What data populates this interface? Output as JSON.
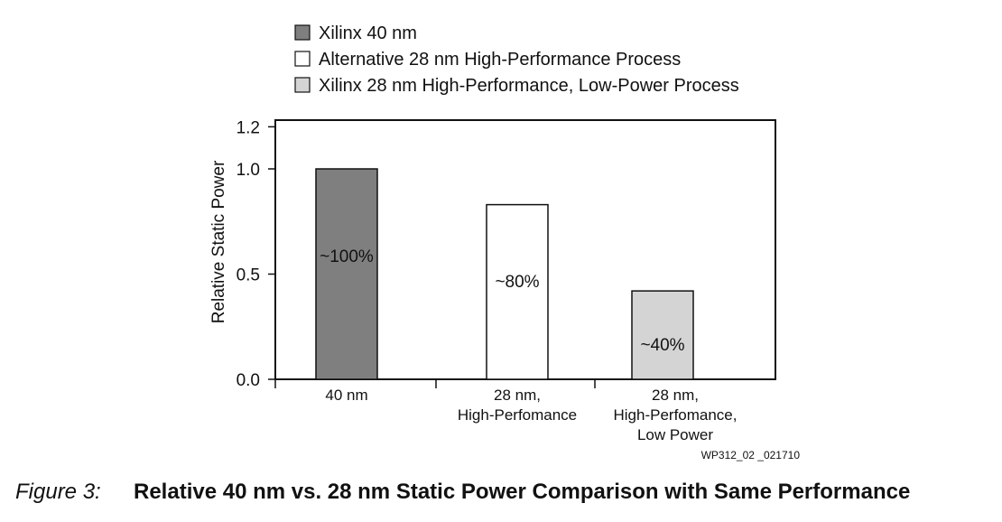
{
  "chart_data": {
    "type": "bar",
    "categories": [
      [
        "40 nm"
      ],
      [
        "28 nm,",
        "High-Perfomance"
      ],
      [
        "28 nm,",
        "High-Perfomance,",
        "Low Power"
      ]
    ],
    "values": [
      1.0,
      0.83,
      0.42
    ],
    "data_labels": [
      "~100%",
      "~80%",
      "~40%"
    ],
    "colors": [
      "#7f7f7f",
      "#ffffff",
      "#d4d4d4"
    ],
    "ylabel": "Relative Static Power",
    "ylim": [
      0,
      1.2
    ],
    "yticks": [
      0.0,
      0.5,
      1.0,
      1.2
    ],
    "ytick_labels": [
      "0.0",
      "0.5",
      "1.0",
      "1.2"
    ],
    "grid": false,
    "legend_position": "top",
    "legend": [
      {
        "label": "Xilinx 40 nm",
        "color": "#7f7f7f"
      },
      {
        "label": "Alternative 28 nm High-Performance Process",
        "color": "#ffffff"
      },
      {
        "label": "Xilinx 28 nm High-Performance, Low-Power Process",
        "color": "#d4d4d4"
      }
    ]
  },
  "figure_code": "WP312_02 _021710",
  "caption": {
    "number": "Figure 3:",
    "title": "Relative 40 nm vs. 28 nm Static Power Comparison with Same Performance"
  }
}
